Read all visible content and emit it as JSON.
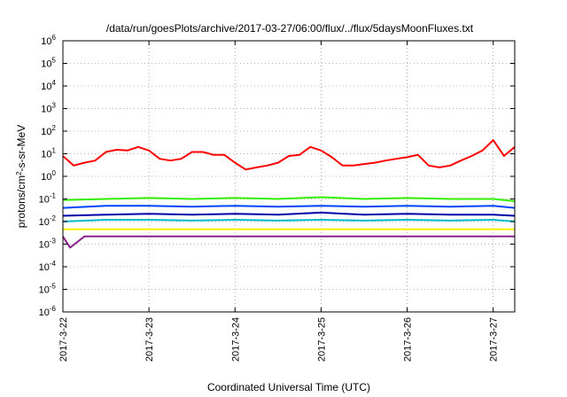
{
  "chart_data": {
    "type": "line",
    "title": "/data/run/goesPlots/archive/2017-03-27/06:00/flux/../flux/5daysMoonFluxes.txt",
    "xlabel": "Coordinated Universal Time (UTC)",
    "ylabel": "protons/cm²-s-sr-MeV",
    "y_scale": "log",
    "ylim": [
      1e-06,
      1000000.0
    ],
    "y_ticks": [
      {
        "value": 1e-06,
        "base": "10",
        "exp": "-6"
      },
      {
        "value": 1e-05,
        "base": "10",
        "exp": "-5"
      },
      {
        "value": 0.0001,
        "base": "10",
        "exp": "-4"
      },
      {
        "value": 0.001,
        "base": "10",
        "exp": "-3"
      },
      {
        "value": 0.01,
        "base": "10",
        "exp": "-2"
      },
      {
        "value": 0.1,
        "base": "10",
        "exp": "-1"
      },
      {
        "value": 1,
        "base": "10",
        "exp": "0"
      },
      {
        "value": 10,
        "base": "10",
        "exp": "1"
      },
      {
        "value": 100,
        "base": "10",
        "exp": "2"
      },
      {
        "value": 1000,
        "base": "10",
        "exp": "3"
      },
      {
        "value": 10000,
        "base": "10",
        "exp": "4"
      },
      {
        "value": 100000,
        "base": "10",
        "exp": "5"
      },
      {
        "value": 1000000,
        "base": "10",
        "exp": "6"
      }
    ],
    "x_ticks": [
      "2017-3-22",
      "2017-3-23",
      "2017-3-24",
      "2017-3-25",
      "2017-3-26",
      "2017-3-27"
    ],
    "xlim": [
      "2017-03-22 00:00",
      "2017-03-27 06:00"
    ],
    "grid": true,
    "series": [
      {
        "color": "#ff0000",
        "values": [
          [
            "2017-03-22 00:00",
            8
          ],
          [
            "2017-03-22 03:00",
            3
          ],
          [
            "2017-03-22 06:00",
            4
          ],
          [
            "2017-03-22 09:00",
            5
          ],
          [
            "2017-03-22 12:00",
            12
          ],
          [
            "2017-03-22 15:00",
            15
          ],
          [
            "2017-03-22 18:00",
            14
          ],
          [
            "2017-03-22 21:00",
            20
          ],
          [
            "2017-03-23 00:00",
            14
          ],
          [
            "2017-03-23 03:00",
            6
          ],
          [
            "2017-03-23 06:00",
            5
          ],
          [
            "2017-03-23 09:00",
            6
          ],
          [
            "2017-03-23 12:00",
            12
          ],
          [
            "2017-03-23 15:00",
            12
          ],
          [
            "2017-03-23 18:00",
            9
          ],
          [
            "2017-03-23 21:00",
            9
          ],
          [
            "2017-03-24 00:00",
            4
          ],
          [
            "2017-03-24 03:00",
            2
          ],
          [
            "2017-03-24 06:00",
            2.5
          ],
          [
            "2017-03-24 09:00",
            3
          ],
          [
            "2017-03-24 12:00",
            4
          ],
          [
            "2017-03-24 15:00",
            8
          ],
          [
            "2017-03-24 18:00",
            9
          ],
          [
            "2017-03-24 21:00",
            20
          ],
          [
            "2017-03-25 00:00",
            14
          ],
          [
            "2017-03-25 03:00",
            7
          ],
          [
            "2017-03-25 06:00",
            3
          ],
          [
            "2017-03-25 09:00",
            3
          ],
          [
            "2017-03-25 12:00",
            3.5
          ],
          [
            "2017-03-25 15:00",
            4
          ],
          [
            "2017-03-25 18:00",
            5
          ],
          [
            "2017-03-25 21:00",
            6
          ],
          [
            "2017-03-26 00:00",
            7
          ],
          [
            "2017-03-26 03:00",
            9
          ],
          [
            "2017-03-26 06:00",
            3
          ],
          [
            "2017-03-26 09:00",
            2.5
          ],
          [
            "2017-03-26 12:00",
            3
          ],
          [
            "2017-03-26 15:00",
            5
          ],
          [
            "2017-03-26 18:00",
            8
          ],
          [
            "2017-03-26 21:00",
            14
          ],
          [
            "2017-03-27 00:00",
            40
          ],
          [
            "2017-03-27 03:00",
            8
          ],
          [
            "2017-03-27 06:00",
            20
          ]
        ]
      },
      {
        "color": "#33ee00",
        "values": [
          [
            "2017-03-22 00:00",
            0.09
          ],
          [
            "2017-03-22 12:00",
            0.1
          ],
          [
            "2017-03-23 00:00",
            0.11
          ],
          [
            "2017-03-23 12:00",
            0.1
          ],
          [
            "2017-03-24 00:00",
            0.11
          ],
          [
            "2017-03-24 12:00",
            0.1
          ],
          [
            "2017-03-25 00:00",
            0.12
          ],
          [
            "2017-03-25 12:00",
            0.1
          ],
          [
            "2017-03-26 00:00",
            0.11
          ],
          [
            "2017-03-26 12:00",
            0.1
          ],
          [
            "2017-03-27 00:00",
            0.1
          ],
          [
            "2017-03-27 06:00",
            0.08
          ]
        ]
      },
      {
        "color": "#0044ff",
        "values": [
          [
            "2017-03-22 00:00",
            0.04
          ],
          [
            "2017-03-22 12:00",
            0.05
          ],
          [
            "2017-03-23 00:00",
            0.05
          ],
          [
            "2017-03-23 12:00",
            0.045
          ],
          [
            "2017-03-24 00:00",
            0.05
          ],
          [
            "2017-03-24 12:00",
            0.045
          ],
          [
            "2017-03-25 00:00",
            0.05
          ],
          [
            "2017-03-25 12:00",
            0.045
          ],
          [
            "2017-03-26 00:00",
            0.05
          ],
          [
            "2017-03-26 12:00",
            0.045
          ],
          [
            "2017-03-27 00:00",
            0.05
          ],
          [
            "2017-03-27 06:00",
            0.04
          ]
        ]
      },
      {
        "color": "#0000aa",
        "values": [
          [
            "2017-03-22 00:00",
            0.018
          ],
          [
            "2017-03-22 12:00",
            0.02
          ],
          [
            "2017-03-23 00:00",
            0.022
          ],
          [
            "2017-03-23 12:00",
            0.02
          ],
          [
            "2017-03-24 00:00",
            0.022
          ],
          [
            "2017-03-24 12:00",
            0.02
          ],
          [
            "2017-03-25 00:00",
            0.025
          ],
          [
            "2017-03-25 12:00",
            0.02
          ],
          [
            "2017-03-26 00:00",
            0.022
          ],
          [
            "2017-03-26 12:00",
            0.02
          ],
          [
            "2017-03-27 00:00",
            0.02
          ],
          [
            "2017-03-27 06:00",
            0.018
          ]
        ]
      },
      {
        "color": "#00bbcc",
        "values": [
          [
            "2017-03-22 00:00",
            0.01
          ],
          [
            "2017-03-22 12:00",
            0.012
          ],
          [
            "2017-03-23 00:00",
            0.012
          ],
          [
            "2017-03-23 12:00",
            0.011
          ],
          [
            "2017-03-24 00:00",
            0.012
          ],
          [
            "2017-03-24 12:00",
            0.011
          ],
          [
            "2017-03-25 00:00",
            0.012
          ],
          [
            "2017-03-25 12:00",
            0.011
          ],
          [
            "2017-03-26 00:00",
            0.012
          ],
          [
            "2017-03-26 12:00",
            0.011
          ],
          [
            "2017-03-27 00:00",
            0.012
          ],
          [
            "2017-03-27 06:00",
            0.01
          ]
        ]
      },
      {
        "color": "#ffee00",
        "values": [
          [
            "2017-03-22 00:00",
            0.0045
          ],
          [
            "2017-03-23 00:00",
            0.0045
          ],
          [
            "2017-03-24 00:00",
            0.0045
          ],
          [
            "2017-03-25 00:00",
            0.0045
          ],
          [
            "2017-03-26 00:00",
            0.0045
          ],
          [
            "2017-03-27 00:00",
            0.0045
          ],
          [
            "2017-03-27 06:00",
            0.0045
          ]
        ]
      },
      {
        "color": "#882288",
        "values": [
          [
            "2017-03-22 00:00",
            0.0022
          ],
          [
            "2017-03-22 02:00",
            0.0007
          ],
          [
            "2017-03-22 06:00",
            0.0022
          ],
          [
            "2017-03-23 00:00",
            0.0022
          ],
          [
            "2017-03-24 00:00",
            0.0022
          ],
          [
            "2017-03-25 00:00",
            0.0022
          ],
          [
            "2017-03-26 00:00",
            0.0022
          ],
          [
            "2017-03-27 00:00",
            0.0022
          ],
          [
            "2017-03-27 06:00",
            0.0022
          ]
        ]
      }
    ]
  }
}
